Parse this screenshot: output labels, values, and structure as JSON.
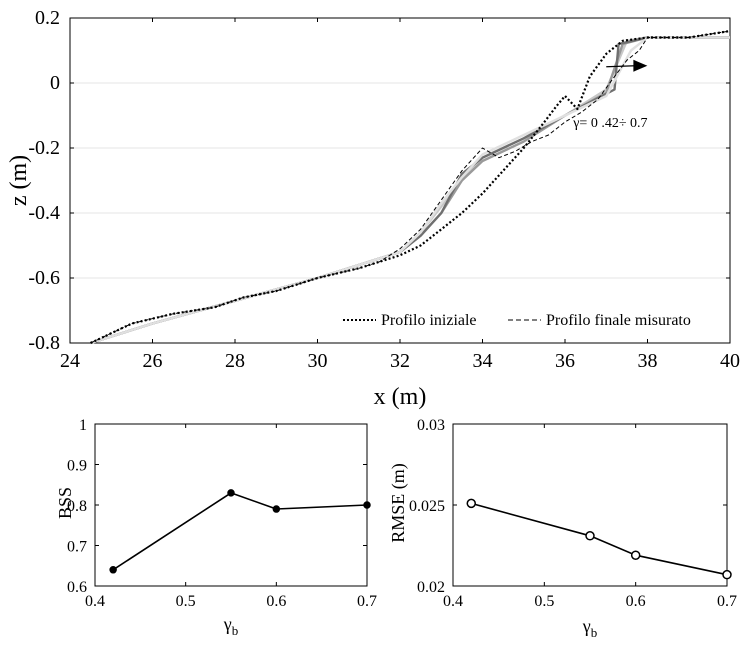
{
  "chart_data": [
    {
      "type": "line",
      "xlabel": "x (m)",
      "ylabel": "z (m)",
      "xlim": [
        24,
        40
      ],
      "ylim": [
        -0.8,
        0.2
      ],
      "xticks": [
        "24",
        "26",
        "28",
        "30",
        "32",
        "34",
        "36",
        "38",
        "40"
      ],
      "yticks": [
        "-0.8",
        "-0.6",
        "-0.4",
        "-0.2",
        "0",
        "0.2"
      ],
      "grid": "horizontal",
      "legend_position": "bottom-right",
      "annotation": "γ= 0 .42÷ 0.7",
      "series": [
        {
          "name": "Profilo iniziale",
          "style": "dotted",
          "color": "#000000",
          "x": [
            24.5,
            25.5,
            26.5,
            27.5,
            28.2,
            29,
            30,
            31,
            31.5,
            32,
            32.5,
            33,
            33.5,
            34,
            34.5,
            35,
            35.5,
            35.8,
            36,
            36.3,
            36.6,
            37,
            37.4,
            38,
            39,
            40
          ],
          "y": [
            -0.8,
            -0.74,
            -0.71,
            -0.69,
            -0.66,
            -0.64,
            -0.6,
            -0.57,
            -0.55,
            -0.53,
            -0.5,
            -0.45,
            -0.4,
            -0.34,
            -0.27,
            -0.2,
            -0.12,
            -0.07,
            -0.04,
            -0.08,
            0.02,
            0.09,
            0.13,
            0.14,
            0.14,
            0.16
          ]
        },
        {
          "name": "Profilo finale misurato",
          "style": "dashed",
          "color": "#000000",
          "x": [
            24.5,
            25.5,
            26.5,
            27.5,
            28.2,
            29,
            30,
            31,
            31.5,
            32,
            32.5,
            33,
            33.5,
            34,
            34.4,
            34.8,
            35.2,
            35.6,
            36,
            36.4,
            36.8,
            37.2,
            37.5,
            37.8,
            38,
            39,
            40
          ],
          "y": [
            -0.8,
            -0.74,
            -0.71,
            -0.69,
            -0.66,
            -0.64,
            -0.6,
            -0.57,
            -0.55,
            -0.51,
            -0.45,
            -0.36,
            -0.27,
            -0.2,
            -0.23,
            -0.21,
            -0.18,
            -0.16,
            -0.12,
            -0.09,
            -0.05,
            0.02,
            0.07,
            0.1,
            0.14,
            0.14,
            0.16
          ]
        },
        {
          "style": "solid",
          "color": "#c8c8c8",
          "x": [
            24.5,
            26,
            28,
            30,
            31,
            32,
            32.5,
            33,
            33.5,
            34,
            35,
            36,
            37,
            37.5,
            38,
            39,
            40
          ],
          "y": [
            -0.8,
            -0.74,
            -0.67,
            -0.6,
            -0.56,
            -0.52,
            -0.46,
            -0.38,
            -0.3,
            -0.23,
            -0.17,
            -0.1,
            -0.02,
            0.13,
            0.14,
            0.14,
            0.14
          ]
        },
        {
          "style": "solid",
          "color": "#9a9a9a",
          "x": [
            24.5,
            26,
            28,
            30,
            31,
            32,
            32.5,
            33,
            33.5,
            34,
            35,
            36,
            37,
            37.4,
            38,
            39,
            40
          ],
          "y": [
            -0.8,
            -0.74,
            -0.67,
            -0.6,
            -0.56,
            -0.52,
            -0.47,
            -0.4,
            -0.3,
            -0.24,
            -0.18,
            -0.1,
            -0.03,
            0.12,
            0.14,
            0.14,
            0.14
          ]
        },
        {
          "style": "solid",
          "color": "#707070",
          "x": [
            24.5,
            26,
            28,
            30,
            31,
            32,
            32.5,
            33,
            33.5,
            34,
            35,
            36,
            37.2,
            37.3,
            38,
            39,
            40
          ],
          "y": [
            -0.8,
            -0.74,
            -0.67,
            -0.6,
            -0.56,
            -0.52,
            -0.47,
            -0.4,
            -0.28,
            -0.23,
            -0.17,
            -0.1,
            -0.02,
            0.12,
            0.14,
            0.14,
            0.14
          ]
        },
        {
          "style": "solid",
          "color": "#e0e0e0",
          "x": [
            24.5,
            26,
            28,
            30,
            31,
            32,
            32.5,
            33,
            33.5,
            34,
            35,
            36,
            37,
            37.6,
            38,
            39,
            40
          ],
          "y": [
            -0.8,
            -0.74,
            -0.67,
            -0.6,
            -0.56,
            -0.52,
            -0.46,
            -0.37,
            -0.29,
            -0.22,
            -0.16,
            -0.1,
            -0.04,
            0.1,
            0.14,
            0.14,
            0.14
          ]
        }
      ]
    },
    {
      "type": "line",
      "xlabel": "γ",
      "xlabel_sub": "b",
      "ylabel": "BSS",
      "xlim": [
        0.4,
        0.7
      ],
      "ylim": [
        0.6,
        1.0
      ],
      "xticks": [
        "0.4",
        "0.5",
        "0.6",
        "0.7"
      ],
      "yticks": [
        "0.6",
        "0.7",
        "0.8",
        "0.9",
        "1"
      ],
      "series": [
        {
          "x": [
            0.42,
            0.55,
            0.6,
            0.7
          ],
          "y": [
            0.64,
            0.83,
            0.79,
            0.8
          ],
          "marker": "filled-circle",
          "color": "#000000"
        }
      ]
    },
    {
      "type": "line",
      "xlabel": "γ",
      "xlabel_sub": "b",
      "ylabel": "RMSE (m)",
      "xlim": [
        0.4,
        0.7
      ],
      "ylim": [
        0.02,
        0.03
      ],
      "xticks": [
        "0.4",
        "0.5",
        "0.6",
        "0.7"
      ],
      "yticks": [
        "0.02",
        "0.025",
        "0.03"
      ],
      "series": [
        {
          "x": [
            0.42,
            0.55,
            0.6,
            0.7
          ],
          "y": [
            0.0251,
            0.0231,
            0.0219,
            0.0207
          ],
          "marker": "open-circle",
          "color": "#000000"
        }
      ]
    }
  ]
}
